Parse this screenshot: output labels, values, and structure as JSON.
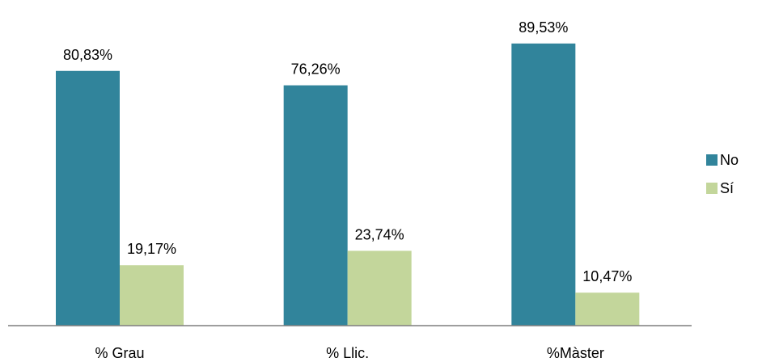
{
  "chart_data": {
    "type": "bar",
    "categories": [
      "% Grau",
      "% Llic.",
      "%Màster"
    ],
    "series": [
      {
        "name": "No",
        "values": [
          80.83,
          76.26,
          89.53
        ],
        "labels": [
          "80,83%",
          "76,26%",
          "89,53%"
        ],
        "color": "#31849B"
      },
      {
        "name": "Sí",
        "values": [
          19.17,
          23.74,
          10.47
        ],
        "labels": [
          "19,17%",
          "23,74%",
          "10,47%"
        ],
        "color": "#C3D69B"
      }
    ],
    "ylim": [
      0,
      100
    ],
    "grid": false,
    "legend_position": "right"
  }
}
